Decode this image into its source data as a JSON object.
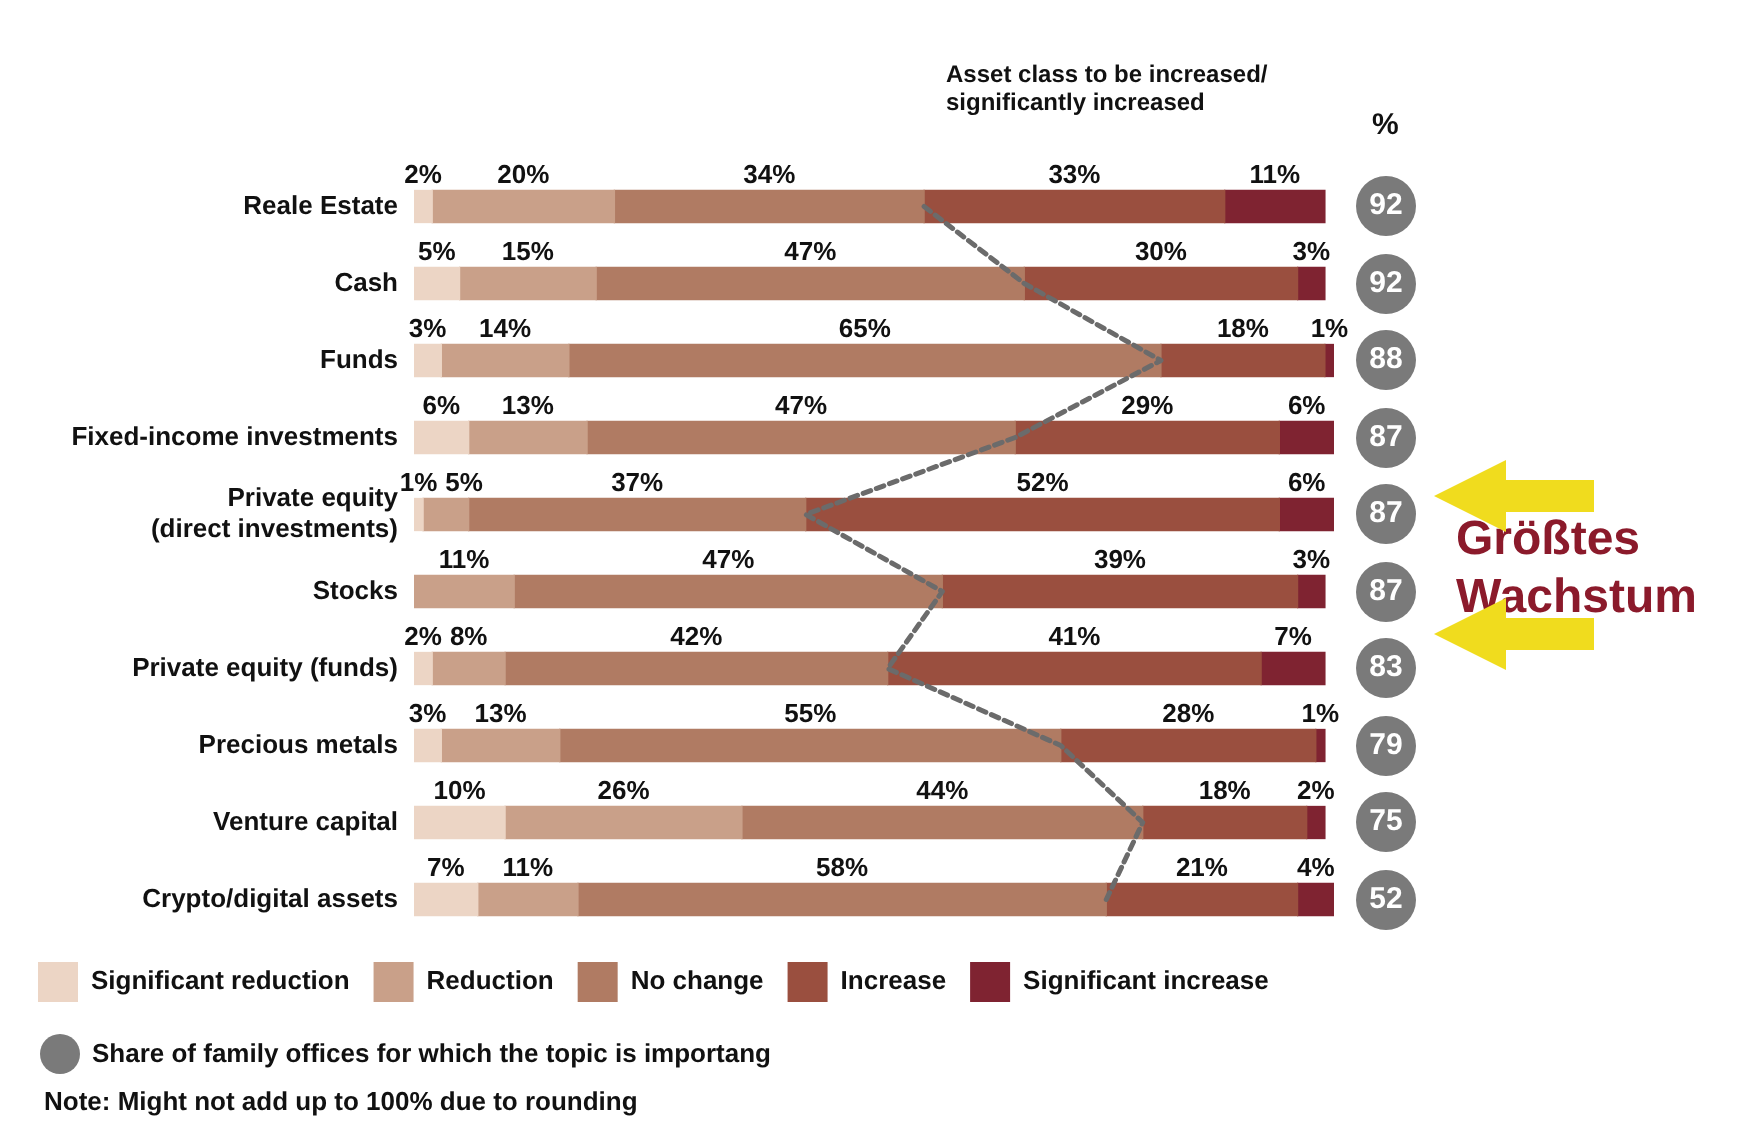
{
  "chart_data": {
    "type": "bar",
    "orientation": "horizontal",
    "stacked": true,
    "categories": [
      "Reale Estate",
      "Cash",
      "Funds",
      "Fixed-income investments",
      "Private equity (direct investments)",
      "Stocks",
      "Private equity (funds)",
      "Precious metals",
      "Venture capital",
      "Crypto/digital assets"
    ],
    "series": [
      {
        "name": "Significant reduction",
        "color": "#ecd5c5",
        "values": [
          2,
          5,
          3,
          6,
          1,
          null,
          2,
          3,
          10,
          7
        ],
        "value_labels": [
          "2%",
          "5%",
          "3%",
          "6%",
          "1%",
          null,
          "2%",
          "3%",
          "10%",
          "7%"
        ]
      },
      {
        "name": "Reduction",
        "color": "#c9a089",
        "values": [
          20,
          15,
          14,
          13,
          5,
          11,
          8,
          13,
          26,
          11
        ],
        "value_labels": [
          "20%",
          "15%",
          "14%",
          "13%",
          "5%",
          "11%",
          "8%",
          "13%",
          "26%",
          "11%"
        ]
      },
      {
        "name": "No change",
        "color": "#b07b63",
        "values": [
          34,
          47,
          65,
          47,
          37,
          47,
          42,
          55,
          44,
          58
        ],
        "value_labels": [
          "34%",
          "47%",
          "65%",
          "47%",
          "37%",
          "47%",
          "42%",
          "55%",
          "44%",
          "58%"
        ]
      },
      {
        "name": "Increase",
        "color": "#9a4f3f",
        "values": [
          33,
          30,
          18,
          29,
          52,
          39,
          41,
          28,
          18,
          21
        ],
        "value_labels": [
          "33%",
          "30%",
          "18%",
          "29%",
          "52%",
          "39%",
          "41%",
          "28%",
          "18%",
          "21%"
        ]
      },
      {
        "name": "Significant increase",
        "color": "#7f2331",
        "values": [
          11,
          3,
          1,
          6,
          6,
          3,
          7,
          1,
          2,
          4
        ],
        "value_labels": [
          "11%",
          "3%",
          "1%",
          "6%",
          "6%",
          "3%",
          "7%",
          "1%",
          "2%",
          "4%"
        ]
      },
      {
        "type": "line",
        "color": "#6b6b6b",
        "line_style": "dashed",
        "marker": "none",
        "values": [
          56,
          67,
          82,
          66,
          43,
          58,
          52,
          71,
          80,
          76
        ]
      }
    ],
    "tick_labels": "y",
    "grid": false,
    "legend": "bottom",
    "annotations": [
      "Asset class to be increased/ significantly increased",
      "%",
      "92",
      "92",
      "88",
      "87",
      "87",
      "87",
      "83",
      "79",
      "75",
      "52",
      "Größtes Wachstum",
      "Share of family offices for which the topic is importang",
      "Note: Might not add up to 100% due to rounding"
    ]
  }
}
